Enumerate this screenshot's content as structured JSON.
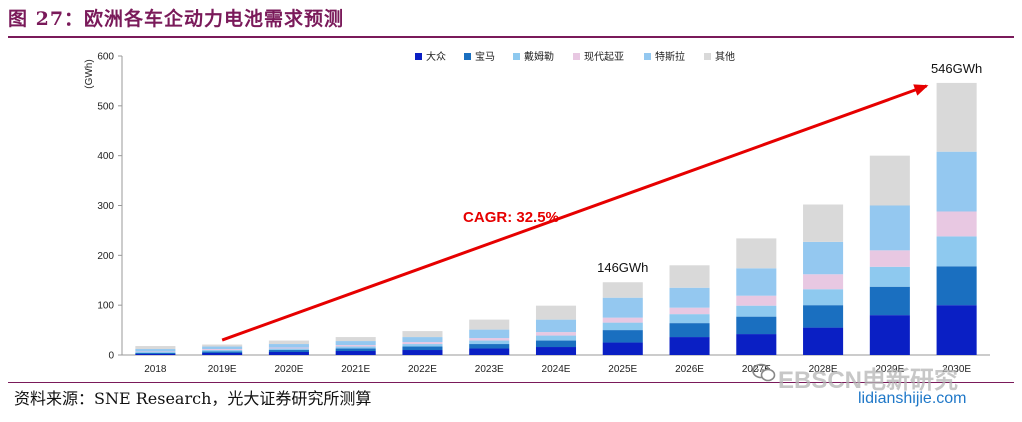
{
  "header": {
    "title": "图 27：欧洲各车企动力电池需求预测"
  },
  "footer": {
    "source": "资料来源：SNE Research，光大证券研究所测算"
  },
  "watermark": {
    "text": "EBSCN电新研究",
    "url": "lidianshijie.com",
    "icon": "wechat-icon"
  },
  "chart_data": {
    "type": "bar",
    "stacked": true,
    "categories": [
      "2018",
      "2019E",
      "2020E",
      "2021E",
      "2022E",
      "2023E",
      "2024E",
      "2025E",
      "2026E",
      "2027E",
      "2028E",
      "2029E",
      "2030E"
    ],
    "series": [
      {
        "name": "大众",
        "color": "#0a1fc4",
        "values": [
          2,
          4,
          6,
          8,
          10,
          13,
          16,
          25,
          36,
          42,
          55,
          80,
          100
        ]
      },
      {
        "name": "宝马",
        "color": "#1a6fc0",
        "values": [
          2,
          3,
          4,
          5,
          7,
          9,
          13,
          25,
          28,
          35,
          45,
          57,
          78
        ]
      },
      {
        "name": "戴姆勒",
        "color": "#8ec9ef",
        "values": [
          2,
          3,
          3,
          4,
          5,
          7,
          10,
          15,
          18,
          22,
          32,
          40,
          60
        ]
      },
      {
        "name": "现代起亚",
        "color": "#e8c8e2",
        "values": [
          1,
          2,
          2,
          3,
          4,
          5,
          7,
          10,
          13,
          20,
          30,
          33,
          50
        ]
      },
      {
        "name": "特斯拉",
        "color": "#94c8f0",
        "values": [
          5,
          5,
          7,
          8,
          10,
          17,
          25,
          40,
          40,
          55,
          65,
          90,
          120
        ]
      },
      {
        "name": "其他",
        "color": "#d9d9d9",
        "values": [
          6,
          4,
          7,
          8,
          12,
          20,
          28,
          31,
          45,
          60,
          75,
          100,
          138
        ]
      }
    ],
    "ylabel": "(GWh)",
    "ylim": [
      0,
      600
    ],
    "yticks": [
      0,
      100,
      200,
      300,
      400,
      500,
      600
    ],
    "legend_position": "top-right",
    "annotations": [
      {
        "category": "2025E",
        "text": "146GWh"
      },
      {
        "category": "2030E",
        "text": "546GWh"
      },
      {
        "text": "CAGR: 32.5%",
        "color": "#e60000"
      }
    ]
  }
}
